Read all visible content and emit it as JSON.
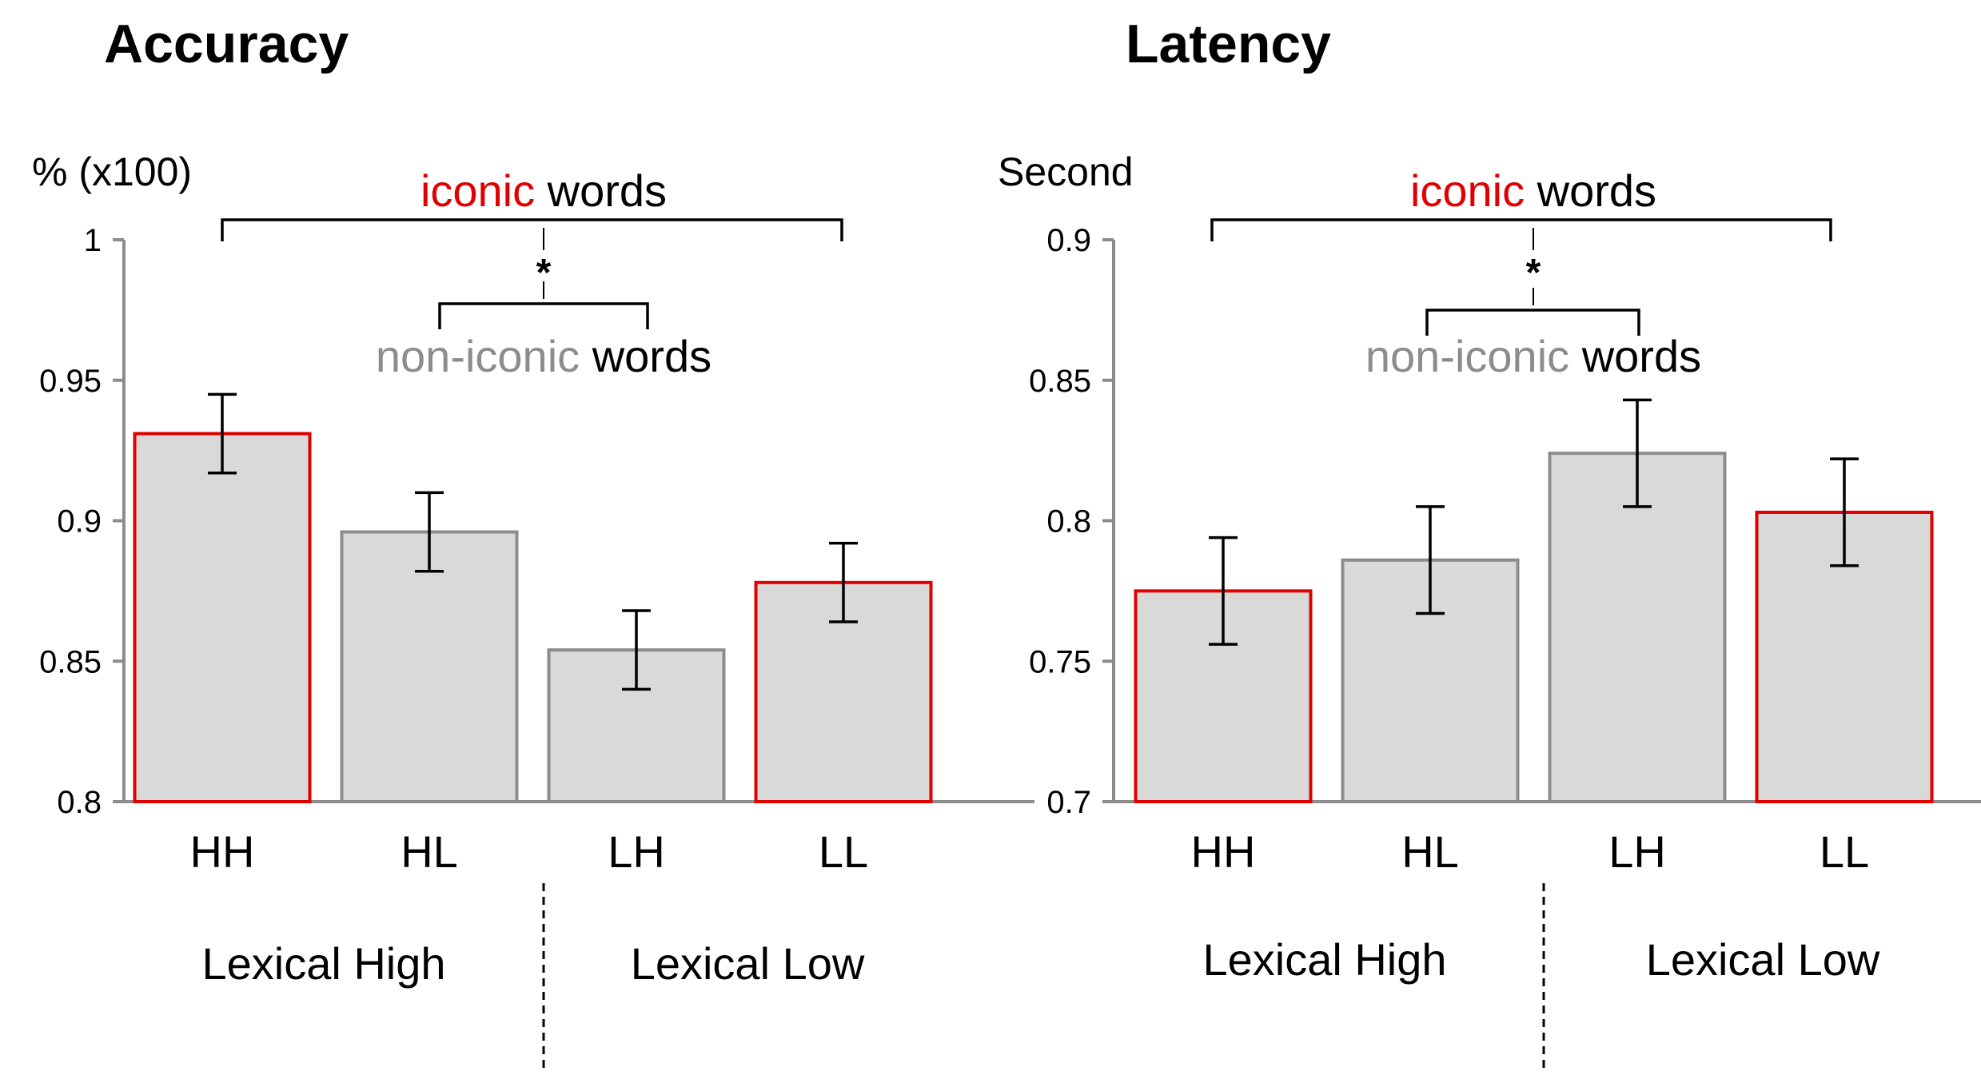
{
  "colors": {
    "iconic": "#e00000",
    "non_iconic": "#8c8c8c",
    "bar_fill": "#d9d9d9",
    "axis": "#8c8c8c",
    "text": "#000000"
  },
  "annotation": {
    "iconic_word": "iconic",
    "non_iconic_word": "non-iconic",
    "words": "words",
    "significance": "*"
  },
  "groups": [
    "Lexical High",
    "Lexical Low"
  ],
  "chart_data": [
    {
      "type": "bar",
      "title": "Accuracy",
      "ylabel": "% (x100)",
      "categories": [
        "HH",
        "HL",
        "LH",
        "LL"
      ],
      "values": [
        0.931,
        0.896,
        0.854,
        0.878
      ],
      "errors": [
        0.014,
        0.014,
        0.014,
        0.014
      ],
      "iconic": [
        true,
        false,
        false,
        true
      ],
      "ylim": [
        0.8,
        1.0
      ],
      "yticks": [
        0.8,
        0.85,
        0.9,
        0.95,
        1.0
      ],
      "ytick_labels": [
        "0.8",
        "0.85",
        "0.9",
        "0.95",
        "1"
      ],
      "grid": false
    },
    {
      "type": "bar",
      "title": "Latency",
      "ylabel": "Second",
      "categories": [
        "HH",
        "HL",
        "LH",
        "LL"
      ],
      "values": [
        0.775,
        0.786,
        0.824,
        0.803
      ],
      "errors": [
        0.019,
        0.019,
        0.019,
        0.019
      ],
      "iconic": [
        true,
        false,
        false,
        true
      ],
      "ylim": [
        0.7,
        0.9
      ],
      "yticks": [
        0.7,
        0.75,
        0.8,
        0.85,
        0.9
      ],
      "ytick_labels": [
        "0.7",
        "0.75",
        "0.8",
        "0.85",
        "0.9"
      ],
      "grid": false
    }
  ]
}
